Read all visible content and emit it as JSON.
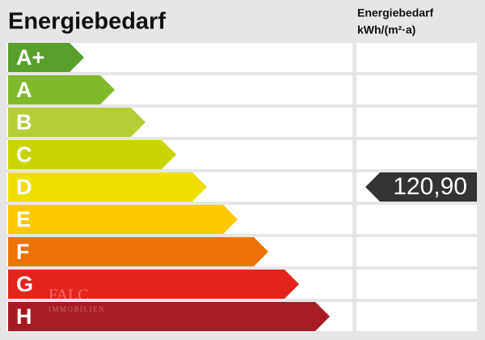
{
  "title": "Energiebedarf",
  "column_header": [
    "Energiebedarf",
    "kWh/(m²·a)"
  ],
  "classes": [
    {
      "label": "A+",
      "color": "#57a02b"
    },
    {
      "label": "A",
      "color": "#82b92c"
    },
    {
      "label": "B",
      "color": "#b6cd36"
    },
    {
      "label": "C",
      "color": "#c9d500"
    },
    {
      "label": "D",
      "color": "#eedf00",
      "value": "120,90"
    },
    {
      "label": "E",
      "color": "#fcc800"
    },
    {
      "label": "F",
      "color": "#ec7406"
    },
    {
      "label": "G",
      "color": "#e3241b"
    },
    {
      "label": "H",
      "color": "#a61c24"
    }
  ],
  "watermark": {
    "name": "FALC",
    "subtitle": "IMMOBILIEN"
  }
}
